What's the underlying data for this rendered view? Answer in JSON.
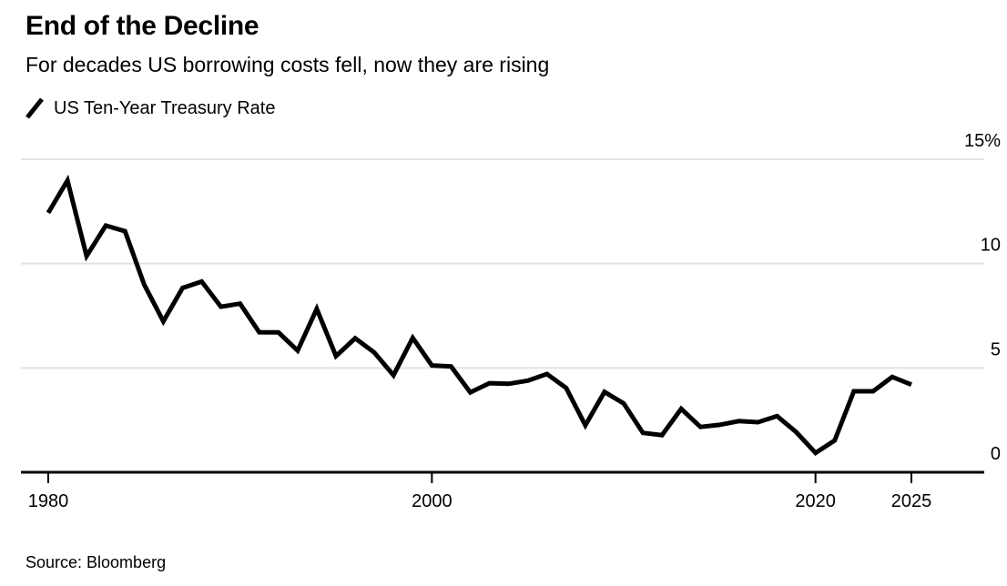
{
  "header": {
    "title": "End of the Decline",
    "subtitle": "For decades US borrowing costs fell, now they are rising"
  },
  "legend": {
    "mark": "diagonal-line",
    "label": "US Ten-Year Treasury Rate"
  },
  "source": "Source: Bloomberg",
  "colors": {
    "background": "#ffffff",
    "text": "#000000",
    "line": "#000000",
    "grid": "#e2e2e2",
    "axis": "#000000"
  },
  "chart_data": {
    "type": "line",
    "title": "End of the Decline",
    "subtitle": "For decades US borrowing costs fell, now they are rising",
    "source": "Source: Bloomberg",
    "grid": "horizontal-only",
    "legend_position": "top-left",
    "series": [
      {
        "name": "US Ten-Year Treasury Rate",
        "unit": "percent",
        "x": [
          1980,
          1981,
          1982,
          1983,
          1984,
          1985,
          1986,
          1987,
          1988,
          1989,
          1990,
          1991,
          1992,
          1993,
          1994,
          1995,
          1996,
          1997,
          1998,
          1999,
          2000,
          2001,
          2002,
          2003,
          2004,
          2005,
          2006,
          2007,
          2008,
          2009,
          2010,
          2011,
          2012,
          2013,
          2014,
          2015,
          2016,
          2017,
          2018,
          2019,
          2020,
          2021,
          2022,
          2023,
          2024,
          2025
        ],
        "values": [
          12.43,
          13.98,
          10.36,
          11.82,
          11.55,
          9.0,
          7.23,
          8.83,
          9.14,
          7.93,
          8.08,
          6.71,
          6.7,
          5.83,
          7.83,
          5.57,
          6.42,
          5.74,
          4.65,
          6.44,
          5.12,
          5.07,
          3.83,
          4.27,
          4.24,
          4.39,
          4.71,
          4.04,
          2.25,
          3.85,
          3.3,
          1.89,
          1.78,
          3.04,
          2.17,
          2.27,
          2.45,
          2.4,
          2.69,
          1.92,
          0.93,
          1.52,
          3.88,
          3.88,
          4.57,
          4.2
        ]
      }
    ],
    "x_axis": {
      "tick_values": [
        1980,
        2000,
        2020,
        2025
      ],
      "tick_labels": [
        "1980",
        "2000",
        "2020",
        "2025"
      ],
      "range": [
        1978.6,
        2028.8
      ]
    },
    "y_axis": {
      "tick_values": [
        15,
        10,
        5,
        0
      ],
      "tick_labels": [
        "15%",
        "10",
        "5",
        "0"
      ],
      "range": [
        0,
        15
      ]
    }
  }
}
